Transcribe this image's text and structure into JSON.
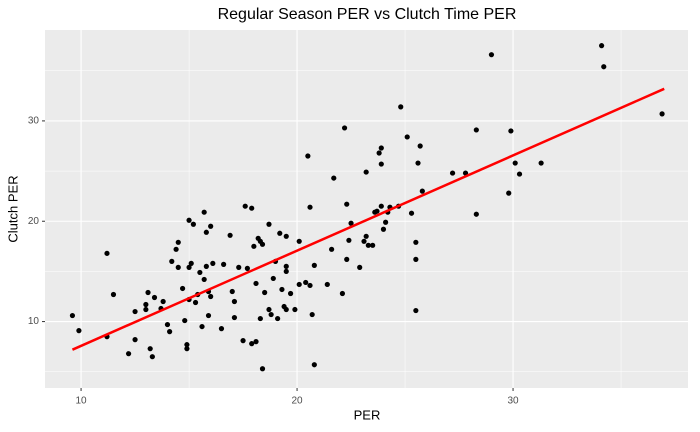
{
  "chart_data": {
    "type": "scatter",
    "title": "Regular Season PER vs Clutch Time PER",
    "x_label": "PER",
    "y_label": "Clutch PER",
    "color": "#000000",
    "xlim": [
      8.33,
      38.1
    ],
    "ylim": [
      3.38,
      39.06
    ],
    "xticks": [
      10,
      20,
      30
    ],
    "yticks": [
      10,
      20,
      30
    ],
    "x_minor_grid": [
      15,
      25,
      35
    ],
    "y_minor_grid": [
      5,
      15,
      25,
      35
    ],
    "grid": true,
    "trend_line": {
      "x": [
        9.6,
        37
      ],
      "y": [
        7.2,
        33.2
      ],
      "color": "#ff0000"
    },
    "x": [
      9.6,
      9.9,
      11.2,
      11.2,
      11.5,
      12.2,
      12.5,
      12.5,
      13.0,
      13.1,
      13.0,
      13.2,
      13.3,
      13.4,
      13.7,
      13.8,
      14.0,
      14.1,
      14.2,
      14.4,
      14.5,
      14.5,
      14.7,
      14.8,
      14.9,
      14.9,
      15.0,
      15.0,
      15.0,
      15.1,
      15.2,
      15.3,
      15.4,
      15.5,
      15.6,
      15.7,
      15.7,
      15.8,
      15.8,
      15.9,
      15.9,
      16.0,
      16.0,
      16.1,
      16.5,
      16.6,
      16.9,
      17.0,
      17.1,
      17.1,
      17.3,
      17.5,
      17.6,
      17.7,
      17.9,
      17.9,
      18.0,
      18.1,
      18.1,
      18.2,
      18.3,
      18.4,
      18.3,
      18.4,
      18.5,
      18.7,
      18.7,
      18.8,
      18.9,
      19.0,
      19.1,
      19.2,
      19.3,
      19.4,
      19.5,
      19.5,
      19.5,
      19.5,
      19.7,
      19.9,
      20.1,
      20.1,
      20.4,
      20.5,
      20.6,
      20.6,
      20.7,
      20.8,
      20.8,
      21.4,
      21.6,
      21.7,
      22.1,
      22.2,
      22.3,
      22.3,
      22.4,
      22.5,
      22.9,
      23.1,
      23.2,
      23.2,
      23.3,
      23.5,
      23.6,
      23.7,
      23.8,
      23.9,
      23.9,
      23.9,
      24.0,
      24.1,
      24.2,
      24.3,
      24.7,
      24.8,
      25.1,
      25.3,
      25.5,
      25.5,
      25.5,
      25.6,
      25.7,
      25.8,
      27.2,
      27.8,
      28.3,
      28.3,
      29.0,
      29.8,
      29.9,
      30.1,
      30.3,
      31.3,
      34.1,
      34.2,
      36.9
    ],
    "values": [
      10.6,
      9.1,
      16.8,
      8.5,
      12.7,
      6.8,
      11.0,
      8.2,
      11.7,
      12.9,
      11.2,
      7.3,
      6.5,
      12.4,
      11.3,
      12.0,
      9.7,
      9.0,
      16.0,
      17.2,
      17.9,
      15.4,
      13.3,
      10.1,
      7.3,
      7.7,
      12.2,
      20.1,
      15.4,
      15.8,
      19.7,
      11.9,
      12.7,
      14.9,
      9.5,
      20.9,
      14.2,
      18.9,
      15.5,
      10.6,
      13.0,
      19.5,
      12.5,
      15.8,
      9.3,
      15.7,
      18.6,
      13.0,
      12.0,
      10.4,
      15.4,
      8.1,
      21.5,
      15.3,
      21.3,
      7.8,
      17.5,
      13.8,
      8.0,
      18.3,
      18.0,
      17.7,
      10.3,
      5.3,
      12.9,
      19.7,
      11.2,
      10.7,
      14.3,
      16.0,
      10.3,
      18.8,
      13.2,
      11.5,
      15.5,
      15.0,
      11.2,
      18.5,
      12.8,
      11.2,
      18.0,
      13.7,
      13.9,
      26.5,
      13.6,
      21.4,
      10.7,
      15.6,
      5.7,
      13.7,
      17.2,
      24.3,
      12.8,
      29.3,
      16.2,
      21.7,
      18.1,
      19.8,
      15.4,
      18.0,
      24.9,
      18.5,
      17.6,
      17.6,
      20.9,
      21.0,
      26.8,
      27.3,
      25.7,
      21.5,
      19.2,
      19.9,
      20.9,
      21.4,
      21.5,
      31.4,
      28.4,
      20.8,
      16.2,
      17.9,
      11.1,
      25.8,
      27.5,
      23.0,
      24.8,
      24.8,
      29.1,
      20.7,
      36.6,
      22.8,
      29.0,
      25.8,
      24.7,
      25.8,
      37.5,
      35.4,
      30.7
    ]
  }
}
